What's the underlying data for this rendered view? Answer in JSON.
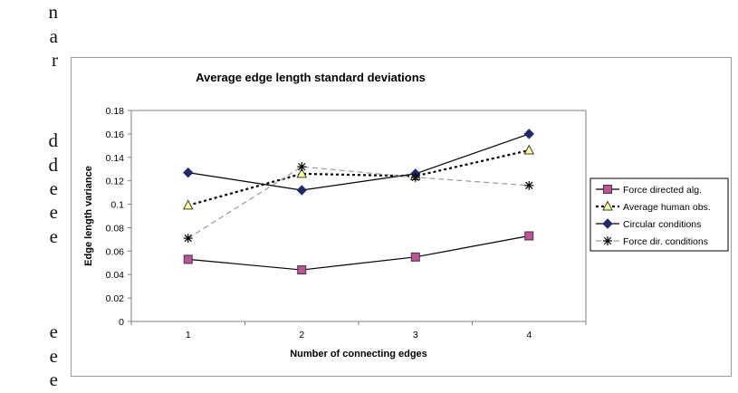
{
  "side_text": [
    "n",
    "a",
    "r",
    "d",
    "d",
    "e",
    "e",
    "e",
    "e",
    "e",
    "e"
  ],
  "chart_data": {
    "type": "line",
    "title": "Average edge length standard deviations",
    "xlabel": "Number of connecting edges",
    "ylabel": "Edge length variance",
    "categories": [
      "1",
      "2",
      "3",
      "4"
    ],
    "ylim": [
      0,
      0.18
    ],
    "yticks": [
      "0",
      "0.02",
      "0.04",
      "0.06",
      "0.08",
      "0.1",
      "0.12",
      "0.14",
      "0.16",
      "0.18"
    ],
    "grid": false,
    "legend_position": "right",
    "series": [
      {
        "name": "Force directed alg.",
        "values": [
          0.053,
          0.044,
          0.055,
          0.073
        ],
        "color": "#000000",
        "dash": "",
        "marker": "square",
        "marker_fill": "#c0509a"
      },
      {
        "name": "Average human obs.",
        "values": [
          0.099,
          0.126,
          0.124,
          0.146
        ],
        "color": "#000000",
        "dash": "3,3",
        "marker": "triangle",
        "marker_fill": "#ffff99"
      },
      {
        "name": "Circular conditions",
        "values": [
          0.127,
          0.112,
          0.126,
          0.16
        ],
        "color": "#000000",
        "dash": "",
        "marker": "diamond",
        "marker_fill": "#1f2a6b"
      },
      {
        "name": "Force dir. conditions",
        "values": [
          0.071,
          0.132,
          0.123,
          0.116
        ],
        "color": "#9a9a9a",
        "dash": "6,4",
        "marker": "star",
        "marker_fill": "#000000"
      }
    ]
  }
}
